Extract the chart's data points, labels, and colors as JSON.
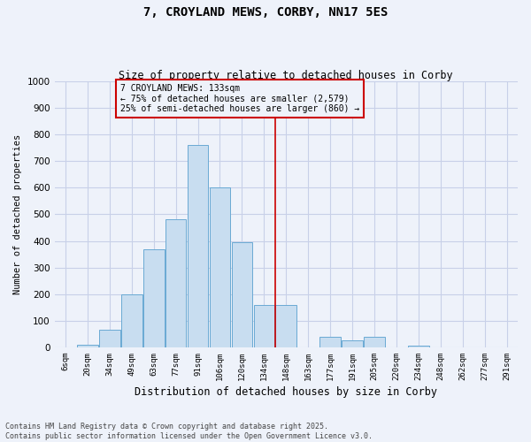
{
  "title": "7, CROYLAND MEWS, CORBY, NN17 5ES",
  "subtitle": "Size of property relative to detached houses in Corby",
  "xlabel": "Distribution of detached houses by size in Corby",
  "ylabel": "Number of detached properties",
  "categories": [
    "6sqm",
    "20sqm",
    "34sqm",
    "49sqm",
    "63sqm",
    "77sqm",
    "91sqm",
    "106sqm",
    "120sqm",
    "134sqm",
    "148sqm",
    "163sqm",
    "177sqm",
    "191sqm",
    "205sqm",
    "220sqm",
    "234sqm",
    "248sqm",
    "262sqm",
    "277sqm",
    "291sqm"
  ],
  "bar_values": [
    0,
    10,
    65,
    200,
    370,
    480,
    760,
    600,
    395,
    160,
    160,
    0,
    40,
    25,
    40,
    0,
    5,
    0,
    0,
    0,
    0
  ],
  "bar_color": "#c8ddf0",
  "bar_edge_color": "#6aaad4",
  "vline_pos": 9.5,
  "vline_color": "#cc0000",
  "annotation_text": "7 CROYLAND MEWS: 133sqm\n← 75% of detached houses are smaller (2,579)\n25% of semi-detached houses are larger (860) →",
  "annotation_box_color": "#cc0000",
  "annotation_bg": "#eef2fa",
  "ylim": [
    0,
    1000
  ],
  "yticks": [
    0,
    100,
    200,
    300,
    400,
    500,
    600,
    700,
    800,
    900,
    1000
  ],
  "footnote": "Contains HM Land Registry data © Crown copyright and database right 2025.\nContains public sector information licensed under the Open Government Licence v3.0.",
  "bg_color": "#eef2fa",
  "grid_color": "#c8d0e8"
}
